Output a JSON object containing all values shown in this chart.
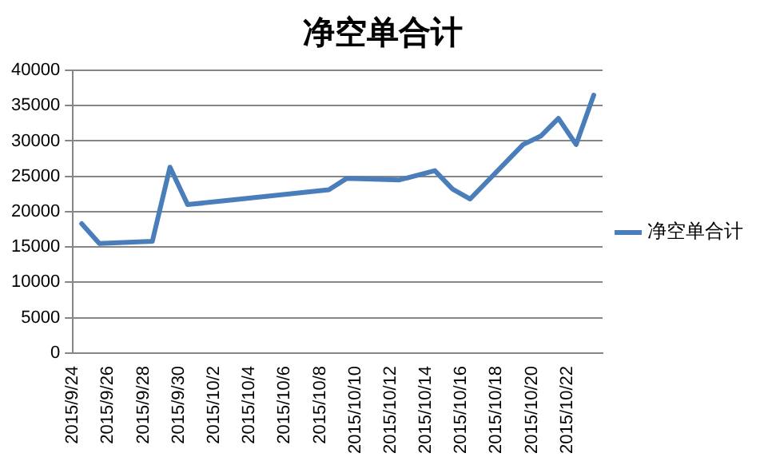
{
  "chart_data": {
    "type": "line",
    "title": "净空单合计",
    "x": [
      "2015-09-24T12:00",
      "2015-09-25T12:00",
      "2015-09-28T12:00",
      "2015-09-29T12:00",
      "2015-09-30T12:00",
      "2015-10-08T12:00",
      "2015-10-09T12:00",
      "2015-10-12T12:00",
      "2015-10-14T12:00",
      "2015-10-15T12:00",
      "2015-10-16T12:00",
      "2015-10-19T12:00",
      "2015-10-20T12:00",
      "2015-10-21T12:00",
      "2015-10-22T12:00",
      "2015-10-23T12:00"
    ],
    "series": [
      {
        "name": "净空单合计",
        "color": "#4a7ebb",
        "values": [
          18300,
          15500,
          15800,
          26300,
          21000,
          23100,
          24700,
          24500,
          25800,
          23200,
          21800,
          29500,
          30700,
          33200,
          29500,
          36500
        ]
      }
    ],
    "xlim": [
      "2015-09-24",
      "2015-10-24"
    ],
    "xticks": [
      {
        "value": "2015-09-24",
        "label": "2015/9/24"
      },
      {
        "value": "2015-09-26",
        "label": "2015/9/26"
      },
      {
        "value": "2015-09-28",
        "label": "2015/9/28"
      },
      {
        "value": "2015-09-30",
        "label": "2015/9/30"
      },
      {
        "value": "2015-10-02",
        "label": "2015/10/2"
      },
      {
        "value": "2015-10-04",
        "label": "2015/10/4"
      },
      {
        "value": "2015-10-06",
        "label": "2015/10/6"
      },
      {
        "value": "2015-10-08",
        "label": "2015/10/8"
      },
      {
        "value": "2015-10-10",
        "label": "2015/10/10"
      },
      {
        "value": "2015-10-12",
        "label": "2015/10/12"
      },
      {
        "value": "2015-10-14",
        "label": "2015/10/14"
      },
      {
        "value": "2015-10-16",
        "label": "2015/10/16"
      },
      {
        "value": "2015-10-18",
        "label": "2015/10/18"
      },
      {
        "value": "2015-10-20",
        "label": "2015/10/20"
      },
      {
        "value": "2015-10-22",
        "label": "2015/10/22"
      }
    ],
    "ylim": [
      0,
      40000
    ],
    "yticks": [
      0,
      5000,
      10000,
      15000,
      20000,
      25000,
      30000,
      35000,
      40000
    ],
    "grid": "y",
    "legend": "right",
    "marker": "none",
    "line_style": "solid"
  }
}
